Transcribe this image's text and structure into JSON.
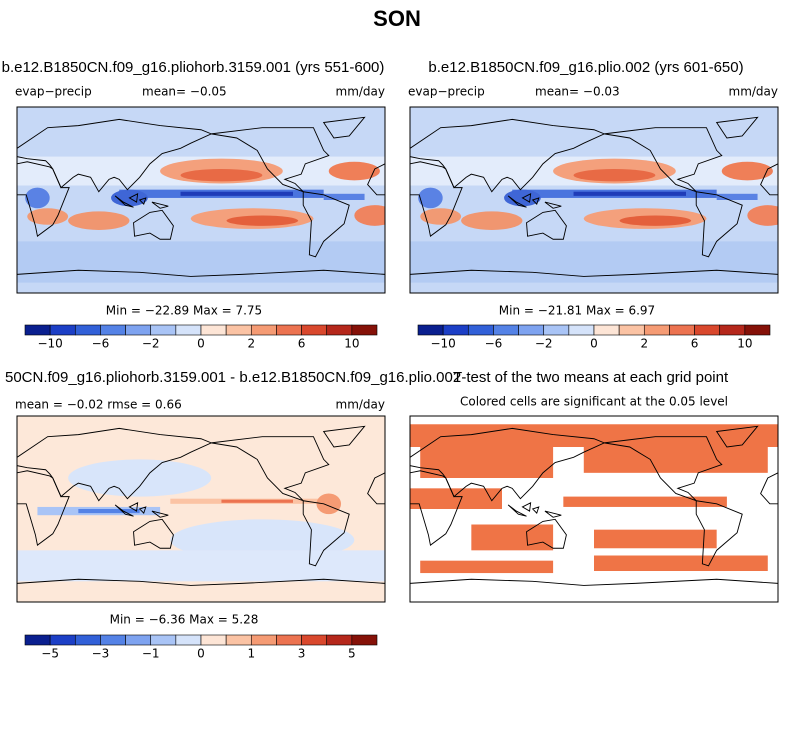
{
  "header": {
    "title": "SON"
  },
  "panels": [
    {
      "title": "b.e12.B1850CN.f09_g16.pliohorb.3159.001 (yrs 551-600)",
      "variable": "evap−precip",
      "stats": "mean=  −0.05",
      "units": "mm/day",
      "range": "Min = −22.89 Max =   7.75",
      "colorbar": {
        "colors": [
          "#0a1f8f",
          "#1c3fc6",
          "#3160d8",
          "#5482e6",
          "#7ea3f0",
          "#a9c4f6",
          "#d5e3fa",
          "#fde5d6",
          "#fbc3a4",
          "#f59b74",
          "#ec7350",
          "#d9482d",
          "#b5271b",
          "#851108"
        ],
        "labels": [
          "−10",
          "−6",
          "−2",
          "0",
          "2",
          "6",
          "10"
        ]
      }
    },
    {
      "title": "b.e12.B1850CN.f09_g16.plio.002 (yrs 601-650)",
      "variable": "evap−precip",
      "stats": "mean=  −0.03",
      "units": "mm/day",
      "range": "Min = −21.81 Max =   6.97",
      "colorbar": {
        "colors": [
          "#0a1f8f",
          "#1c3fc6",
          "#3160d8",
          "#5482e6",
          "#7ea3f0",
          "#a9c4f6",
          "#d5e3fa",
          "#fde5d6",
          "#fbc3a4",
          "#f59b74",
          "#ec7350",
          "#d9482d",
          "#b5271b",
          "#851108"
        ],
        "labels": [
          "−10",
          "−6",
          "−2",
          "0",
          "2",
          "6",
          "10"
        ]
      }
    },
    {
      "title": "50CN.f09_g16.pliohorb.3159.001 - b.e12.B1850CN.f09_g16.plio.002",
      "stats": "mean =  −0.02    rmse =   0.66",
      "units": "mm/day",
      "range": "Min =  −6.36 Max =   5.28",
      "colorbar": {
        "colors": [
          "#0a1f8f",
          "#1c3fc6",
          "#3160d8",
          "#5482e6",
          "#7ea3f0",
          "#a9c4f6",
          "#d5e3fa",
          "#fde5d6",
          "#fbc3a4",
          "#f59b74",
          "#ec7350",
          "#d9482d",
          "#b5271b",
          "#851108"
        ],
        "labels": [
          "−5",
          "−3",
          "−1",
          "0",
          "1",
          "3",
          "5"
        ]
      }
    },
    {
      "title": "T-test of the two means at each grid point",
      "subtitle": "Colored cells are significant at the 0.05 level"
    }
  ]
}
